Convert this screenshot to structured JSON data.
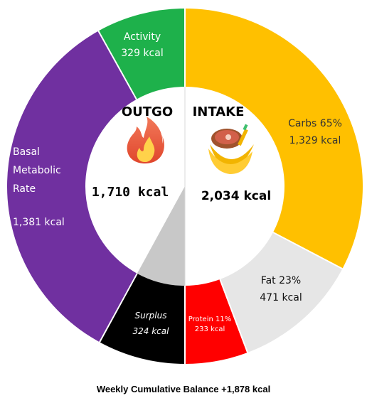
{
  "chart_data": {
    "type": "pie",
    "variant": "split-donut",
    "outgo": {
      "title": "OUTGO",
      "total": "1,710 kcal",
      "icon": "flame-icon",
      "segments": [
        {
          "id": "surplus",
          "label": "Surplus",
          "value_text": "324 kcal",
          "value": 324,
          "color": "#000000"
        },
        {
          "id": "bmr",
          "label": "Basal\nMetabolic\nRate",
          "value_text": "1,381 kcal",
          "value": 1381,
          "color": "#7030a0"
        },
        {
          "id": "activity",
          "label": "Activity",
          "value_text": "329 kcal",
          "value": 329,
          "color": "#1eb14b"
        }
      ]
    },
    "intake": {
      "title": "INTAKE",
      "total": "2,034 kcal",
      "icon": "food-bowl-icon",
      "segments": [
        {
          "id": "carbs",
          "label": "Carbs 65%",
          "value_text": "1,329 kcal",
          "value": 1329,
          "color": "#ffc000"
        },
        {
          "id": "fat",
          "label": "Fat 23%",
          "value_text": "471 kcal",
          "value": 471,
          "color": "#e6e6e6"
        },
        {
          "id": "protein",
          "label": "Protein 11%",
          "value_text": "233 kcal",
          "value": 233,
          "color": "#ff0000"
        }
      ]
    },
    "surplus_wedge_color": "#c8c8c8"
  },
  "footer": "Weekly Cumulative Balance +1,878 kcal"
}
